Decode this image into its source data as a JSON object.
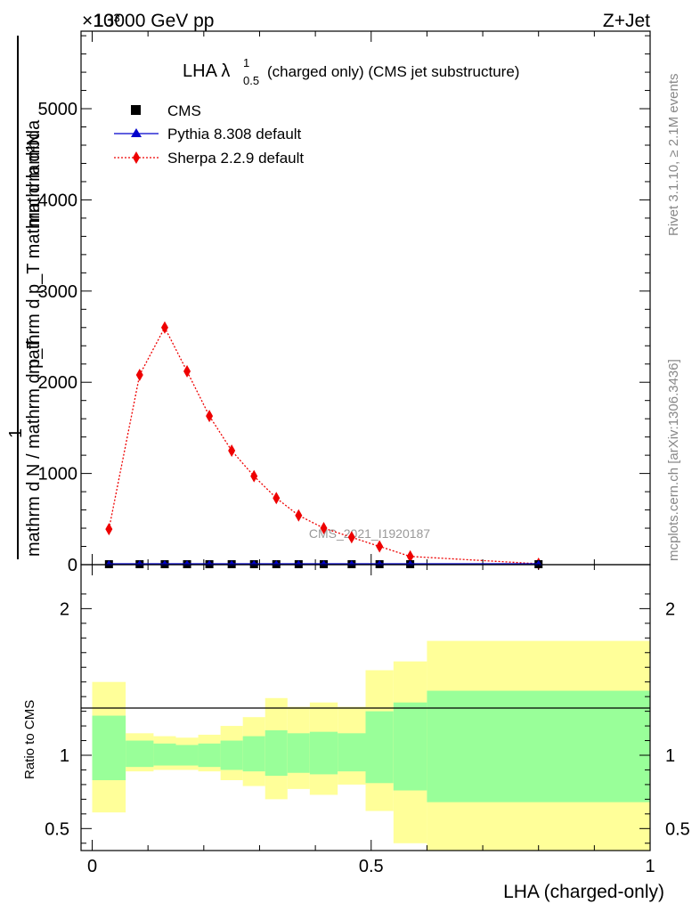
{
  "header": {
    "left": "13000 GeV pp",
    "right": "Z+Jet",
    "exponent": "×10³"
  },
  "side_labels": {
    "rivet": "Rivet 3.1.10, ≥ 2.1M events",
    "mcplots": "mcplots.cern.ch [arXiv:1306.3436]"
  },
  "watermark": "CMS_2021_I1920187",
  "main_plot": {
    "title_main": "LHA λ",
    "title_sup": "1",
    "title_sub": "0.5",
    "title_rest": "(charged only) (CMS jet substructure)",
    "ylabel_top": "mathrm d²N",
    "ylabel_top2": "mathrm d p_T mathrm d lambda",
    "ylabel_num": "1",
    "ylabel_bottom": "mathrm d N / mathrm d p_T",
    "yticks": [
      {
        "value": 0,
        "label": "0"
      },
      {
        "value": 1000,
        "label": "1000"
      },
      {
        "value": 2000,
        "label": "2000"
      },
      {
        "value": 3000,
        "label": "3000"
      },
      {
        "value": 4000,
        "label": "4000"
      },
      {
        "value": 5000,
        "label": "5000"
      }
    ],
    "ylim": [
      0,
      5850
    ]
  },
  "legend": [
    {
      "label": "CMS",
      "color": "#000000",
      "marker": "square"
    },
    {
      "label": "Pythia 8.308 default",
      "color": "#0000cc",
      "marker": "triangle"
    },
    {
      "label": "Sherpa 2.2.9 default",
      "color": "#ee0000",
      "marker": "diamond"
    }
  ],
  "ratio_plot": {
    "ylabel": "Ratio to CMS",
    "yticks": [
      {
        "value": 0.5,
        "label": "0.5"
      },
      {
        "value": 1,
        "label": "1"
      },
      {
        "value": 2,
        "label": "2"
      }
    ],
    "ylim": [
      0.35,
      2.3
    ]
  },
  "xaxis": {
    "label": "LHA (charged-only)",
    "xlim": [
      -0.02,
      1.0
    ],
    "ticks": [
      {
        "value": 0,
        "label": "0"
      },
      {
        "value": 0.5,
        "label": "0.5"
      },
      {
        "value": 1,
        "label": "1"
      }
    ]
  },
  "chart_data": {
    "type": "line",
    "x": [
      0.03,
      0.085,
      0.13,
      0.17,
      0.21,
      0.25,
      0.29,
      0.33,
      0.37,
      0.415,
      0.465,
      0.515,
      0.57,
      0.8
    ],
    "series": [
      {
        "name": "CMS",
        "values": [
          0,
          0,
          0,
          0,
          0,
          0,
          0,
          0,
          0,
          0,
          0,
          0,
          0,
          0
        ]
      },
      {
        "name": "Pythia 8.308 default",
        "values": [
          0,
          0,
          0,
          0,
          0,
          0,
          0,
          0,
          0,
          0,
          0,
          0,
          0,
          0
        ]
      },
      {
        "name": "Sherpa 2.2.9 default",
        "values": [
          390,
          2080,
          2600,
          2120,
          1630,
          1250,
          970,
          730,
          540,
          400,
          300,
          200,
          90,
          10
        ]
      }
    ],
    "ratio_bands": {
      "edges": [
        0,
        0.06,
        0.11,
        0.15,
        0.19,
        0.23,
        0.27,
        0.31,
        0.35,
        0.39,
        0.44,
        0.49,
        0.54,
        0.6,
        1.0
      ],
      "inner_low": [
        0.83,
        0.92,
        0.93,
        0.93,
        0.92,
        0.9,
        0.89,
        0.86,
        0.88,
        0.87,
        0.89,
        0.81,
        0.76,
        0.68
      ],
      "inner_high": [
        1.27,
        1.1,
        1.08,
        1.07,
        1.08,
        1.1,
        1.13,
        1.17,
        1.15,
        1.16,
        1.15,
        1.3,
        1.36,
        1.44
      ],
      "outer_low": [
        0.61,
        0.89,
        0.9,
        0.9,
        0.89,
        0.83,
        0.79,
        0.7,
        0.77,
        0.73,
        0.8,
        0.62,
        0.4,
        0.35
      ],
      "outer_high": [
        1.5,
        1.15,
        1.13,
        1.12,
        1.14,
        1.2,
        1.26,
        1.39,
        1.33,
        1.36,
        1.33,
        1.58,
        1.64,
        1.78
      ]
    },
    "title": "LHA λ^1_0.5 (charged only) (CMS jet substructure)",
    "xlabel": "LHA (charged-only)",
    "ylabel": "Ratio to CMS",
    "ylim": [
      0,
      5850
    ],
    "legend_position": "top-left",
    "colors": {
      "inner_band": "#99ff99",
      "outer_band": "#ffff99"
    }
  }
}
